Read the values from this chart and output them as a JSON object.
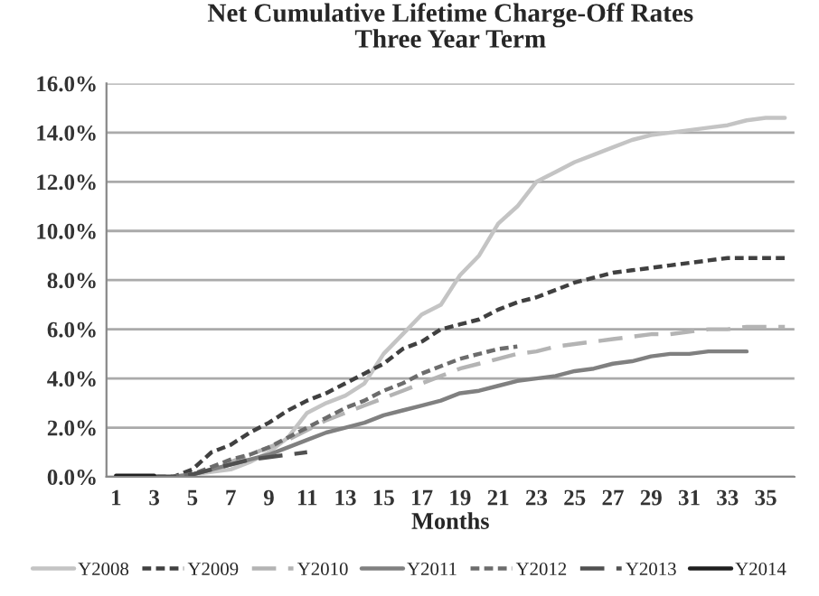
{
  "chart_data": {
    "type": "line",
    "title": "Net Cumulative Lifetime Charge-Off Rates",
    "subtitle": "Three Year Term",
    "xlabel": "Months",
    "x": [
      1,
      2,
      3,
      4,
      5,
      6,
      7,
      8,
      9,
      10,
      11,
      12,
      13,
      14,
      15,
      16,
      17,
      18,
      19,
      20,
      21,
      22,
      23,
      24,
      25,
      26,
      27,
      28,
      29,
      30,
      31,
      32,
      33,
      34,
      35,
      36
    ],
    "series": [
      {
        "name": "Y2008",
        "color": "#c4c4c4",
        "line_style": "solid",
        "values": [
          0,
          0,
          0,
          0,
          0.1,
          0.2,
          0.3,
          0.6,
          1.0,
          1.6,
          2.6,
          3.0,
          3.3,
          3.8,
          5.0,
          5.8,
          6.6,
          7.0,
          8.2,
          9.0,
          10.3,
          11.0,
          12.0,
          12.4,
          12.8,
          13.1,
          13.4,
          13.7,
          13.9,
          14.0,
          14.1,
          14.2,
          14.3,
          14.5,
          14.6,
          14.6
        ]
      },
      {
        "name": "Y2009",
        "color": "#404040",
        "line_style": "dotted",
        "values": [
          0,
          0,
          0,
          0,
          0.3,
          1.0,
          1.3,
          1.8,
          2.2,
          2.7,
          3.1,
          3.4,
          3.8,
          4.2,
          4.6,
          5.2,
          5.5,
          6.0,
          6.2,
          6.4,
          6.8,
          7.1,
          7.3,
          7.6,
          7.9,
          8.1,
          8.3,
          8.4,
          8.5,
          8.6,
          8.7,
          8.8,
          8.9,
          8.9,
          8.9,
          8.9
        ]
      },
      {
        "name": "Y2010",
        "color": "#b4b4b4",
        "line_style": "dashed",
        "values": [
          0,
          0,
          0,
          0,
          0.1,
          0.3,
          0.6,
          0.9,
          1.2,
          1.5,
          1.9,
          2.3,
          2.6,
          2.9,
          3.2,
          3.5,
          3.8,
          4.1,
          4.4,
          4.6,
          4.8,
          5.0,
          5.1,
          5.3,
          5.4,
          5.5,
          5.6,
          5.7,
          5.8,
          5.8,
          5.9,
          6.0,
          6.0,
          6.1,
          6.1,
          6.1
        ]
      },
      {
        "name": "Y2011",
        "color": "#808080",
        "line_style": "solid",
        "values": [
          0,
          0,
          0,
          0,
          0.1,
          0.3,
          0.5,
          0.7,
          0.9,
          1.2,
          1.5,
          1.8,
          2.0,
          2.2,
          2.5,
          2.7,
          2.9,
          3.1,
          3.4,
          3.5,
          3.7,
          3.9,
          4.0,
          4.1,
          4.3,
          4.4,
          4.6,
          4.7,
          4.9,
          5.0,
          5.0,
          5.1,
          5.1,
          5.1,
          null,
          null
        ]
      },
      {
        "name": "Y2012",
        "color": "#6c6c6c",
        "line_style": "dotted",
        "values": [
          0,
          0,
          0,
          0,
          0.1,
          0.4,
          0.7,
          0.9,
          1.2,
          1.6,
          2.0,
          2.4,
          2.8,
          3.1,
          3.5,
          3.8,
          4.2,
          4.5,
          4.8,
          5.0,
          5.2,
          5.3,
          null,
          null,
          null,
          null,
          null,
          null,
          null,
          null,
          null,
          null,
          null,
          null,
          null,
          null
        ]
      },
      {
        "name": "Y2013",
        "color": "#505050",
        "line_style": "dashed",
        "values": [
          0,
          0,
          0,
          0,
          0.1,
          0.3,
          0.5,
          0.7,
          0.8,
          0.9,
          1.0,
          null,
          null,
          null,
          null,
          null,
          null,
          null,
          null,
          null,
          null,
          null,
          null,
          null,
          null,
          null,
          null,
          null,
          null,
          null,
          null,
          null,
          null,
          null,
          null,
          null
        ]
      },
      {
        "name": "Y2014",
        "color": "#202020",
        "line_style": "solid",
        "values": [
          0.05,
          0.05,
          0.05,
          null,
          null,
          null,
          null,
          null,
          null,
          null,
          null,
          null,
          null,
          null,
          null,
          null,
          null,
          null,
          null,
          null,
          null,
          null,
          null,
          null,
          null,
          null,
          null,
          null,
          null,
          null,
          null,
          null,
          null,
          null,
          null,
          null
        ]
      }
    ],
    "xlim": [
      0.5,
      36.5
    ],
    "xticks": [
      1,
      3,
      5,
      7,
      9,
      11,
      13,
      15,
      17,
      19,
      21,
      23,
      25,
      27,
      29,
      31,
      33,
      35
    ],
    "ylim": [
      0,
      16
    ],
    "yticks": [
      {
        "value": 0,
        "label": "0.0%"
      },
      {
        "value": 2,
        "label": "2.0%"
      },
      {
        "value": 4,
        "label": "4.0%"
      },
      {
        "value": 6,
        "label": "6.0%"
      },
      {
        "value": 8,
        "label": "8.0%"
      },
      {
        "value": 10,
        "label": "10.0%"
      },
      {
        "value": 12,
        "label": "12.0%"
      },
      {
        "value": 14,
        "label": "14.0%"
      },
      {
        "value": 16,
        "label": "16.0%"
      }
    ],
    "grid": "y",
    "legend": "bottom",
    "marker": "none"
  }
}
